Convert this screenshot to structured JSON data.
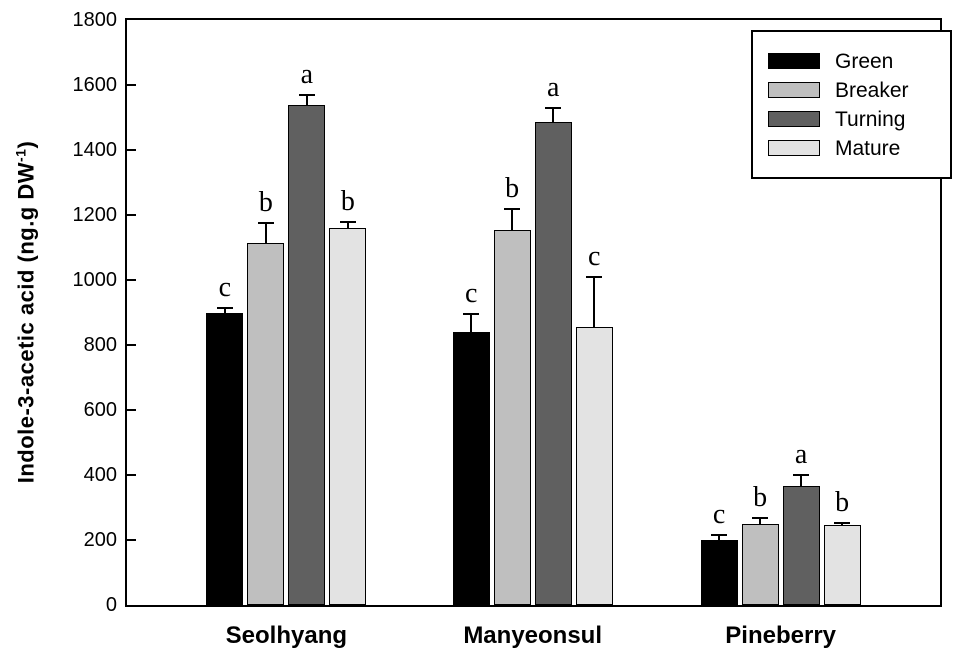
{
  "chart_data": {
    "type": "bar",
    "title": "",
    "xlabel": "",
    "ylabel": "Indole-3-acetic acid (ng.g DW-1)",
    "ylabel_parts": {
      "main": "Indole-3-acetic acid (ng.g DW",
      "sup": "-1",
      "close": ")"
    },
    "categories": [
      "Seolhyang",
      "Manyeonsul",
      "Pineberry"
    ],
    "series": [
      {
        "name": "Green",
        "color": "#000000",
        "values": [
          900,
          840,
          200
        ],
        "errors": [
          15,
          55,
          15
        ],
        "letters": [
          "c",
          "c",
          "c"
        ]
      },
      {
        "name": "Breaker",
        "color": "#bfbfbf",
        "values": [
          1115,
          1155,
          250
        ],
        "errors": [
          60,
          65,
          18
        ],
        "letters": [
          "b",
          "b",
          "b"
        ]
      },
      {
        "name": "Turning",
        "color": "#606060",
        "values": [
          1540,
          1485,
          365
        ],
        "errors": [
          30,
          45,
          35
        ],
        "letters": [
          "a",
          "a",
          "a"
        ]
      },
      {
        "name": "Mature",
        "color": "#e3e3e3",
        "values": [
          1160,
          855,
          245
        ],
        "errors": [
          20,
          155,
          8
        ],
        "letters": [
          "b",
          "c",
          "b"
        ]
      }
    ],
    "ylim": [
      0,
      1800
    ],
    "yticks": [
      0,
      200,
      400,
      600,
      800,
      1000,
      1200,
      1400,
      1600,
      1800
    ],
    "grid": false,
    "legend_position": "top-right",
    "bar_edge_color": "#000000",
    "error_bars": "upper",
    "axis_color": "#000000",
    "background_color": "#ffffff"
  }
}
